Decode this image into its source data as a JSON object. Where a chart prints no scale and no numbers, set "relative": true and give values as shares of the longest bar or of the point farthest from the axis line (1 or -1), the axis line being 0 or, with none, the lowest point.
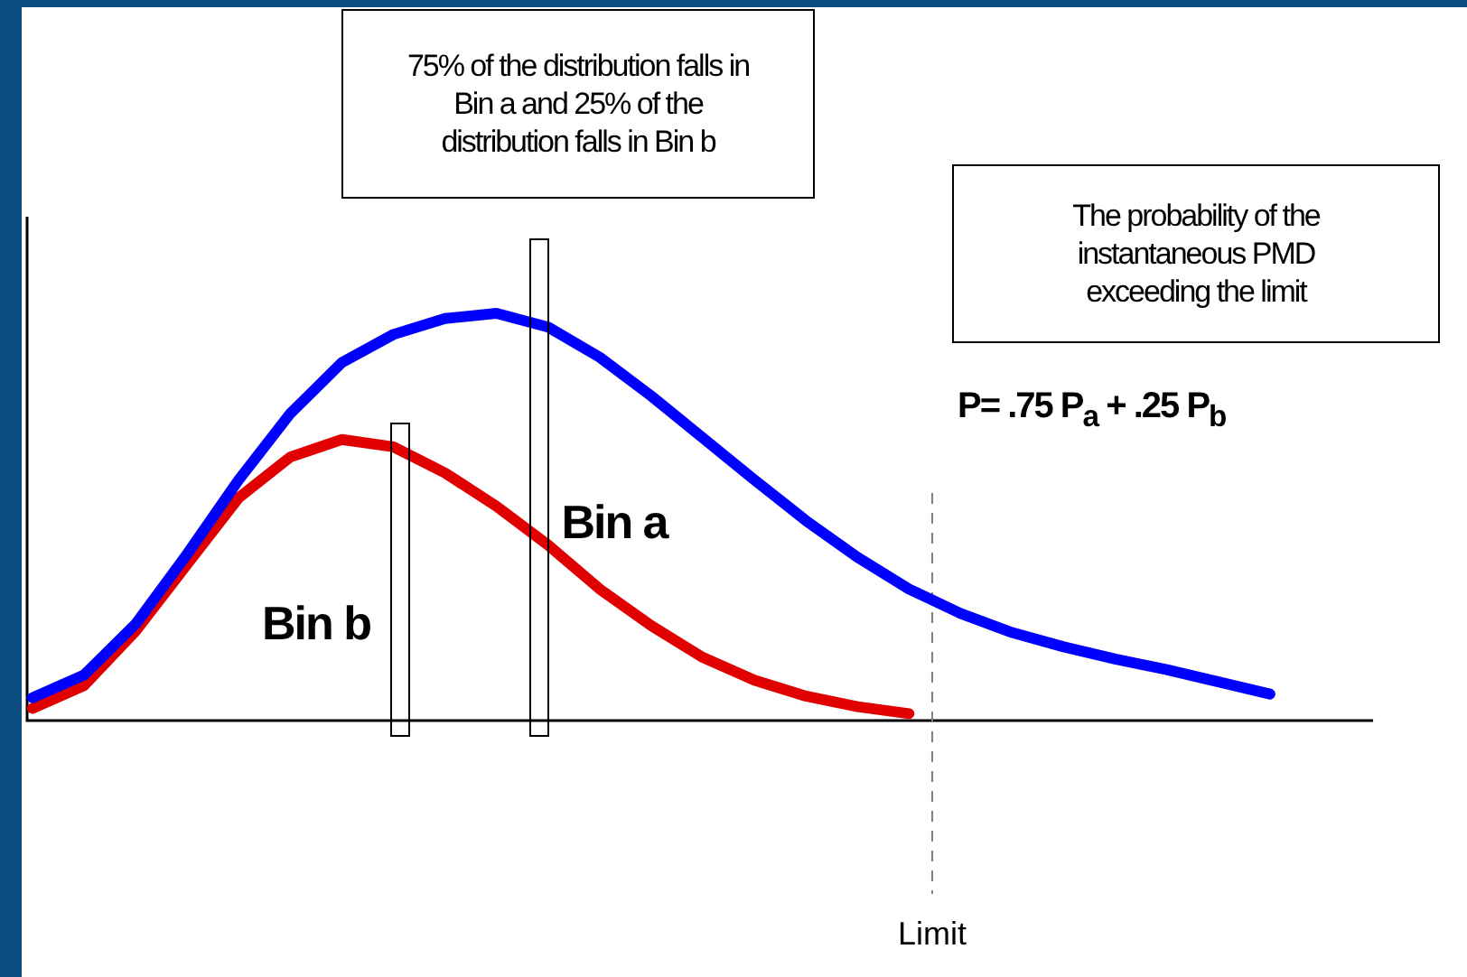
{
  "chart_data": {
    "type": "line",
    "relative": true,
    "line_style": "solid",
    "categories": [
      null,
      null,
      null,
      null,
      null,
      null,
      null,
      null,
      null,
      null,
      null,
      null,
      null,
      null,
      null,
      null,
      null,
      null,
      null,
      null,
      null,
      null,
      null,
      null,
      null,
      null,
      null
    ],
    "series": [
      {
        "color": "#0000ff",
        "values": [
          0.056,
          0.112,
          0.237,
          0.409,
          0.591,
          0.754,
          0.879,
          0.948,
          0.987,
          1,
          0.966,
          0.892,
          0.797,
          0.694,
          0.591,
          0.491,
          0.401,
          0.323,
          0.263,
          0.216,
          0.181,
          0.151,
          0.125,
          0.095,
          0.065,
          null,
          null
        ]
      },
      {
        "color": "#e00000",
        "values": [
          0.03,
          0.086,
          0.22,
          0.384,
          0.547,
          0.647,
          0.69,
          0.672,
          0.608,
          0.526,
          0.431,
          0.323,
          0.233,
          0.155,
          0.099,
          0.06,
          0.034,
          0.017,
          null,
          null,
          null,
          null,
          null,
          null,
          null,
          null,
          null
        ]
      }
    ],
    "ref_lines": [
      {
        "axis": "x",
        "label": "Limit",
        "color": "#808080",
        "line_style": "dashed"
      }
    ],
    "annotations": [
      "75% of the distribution falls in Bin a and 25% of the distribution falls in Bin b",
      "The probability of the instantaneous PMD exceeding the limit",
      "P= .75 P$_{a}$ + .25 P$_{b}$",
      "Bin a",
      "Bin b"
    ]
  }
}
